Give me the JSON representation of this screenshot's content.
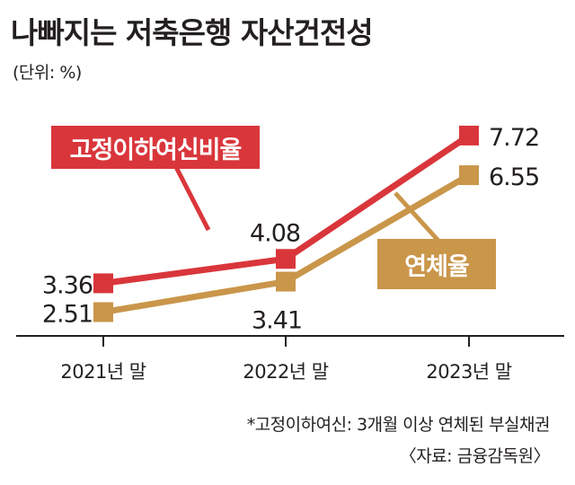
{
  "title": "나빠지는 저축은행 자산건전성",
  "unit": "(단위: %)",
  "footnote": "*고정이하여신: 3개월 이상 연체된 부실채권",
  "source": "〈자료: 금융감독원〉",
  "colors": {
    "red": "#d9363b",
    "gold": "#c9964a",
    "axis": "#231f20"
  },
  "chart_data": {
    "type": "line",
    "categories": [
      "2021년 말",
      "2022년 말",
      "2023년 말"
    ],
    "series": [
      {
        "name": "고정이하여신비율",
        "values": [
          3.36,
          4.08,
          7.72
        ],
        "labels": [
          "3.36",
          "4.08",
          "7.72"
        ],
        "color": "#d9363b"
      },
      {
        "name": "연체율",
        "values": [
          2.51,
          3.41,
          6.55
        ],
        "labels": [
          "2.51",
          "3.41",
          "6.55"
        ],
        "color": "#c9964a"
      }
    ],
    "grid": false,
    "legend": "inline-callout"
  }
}
